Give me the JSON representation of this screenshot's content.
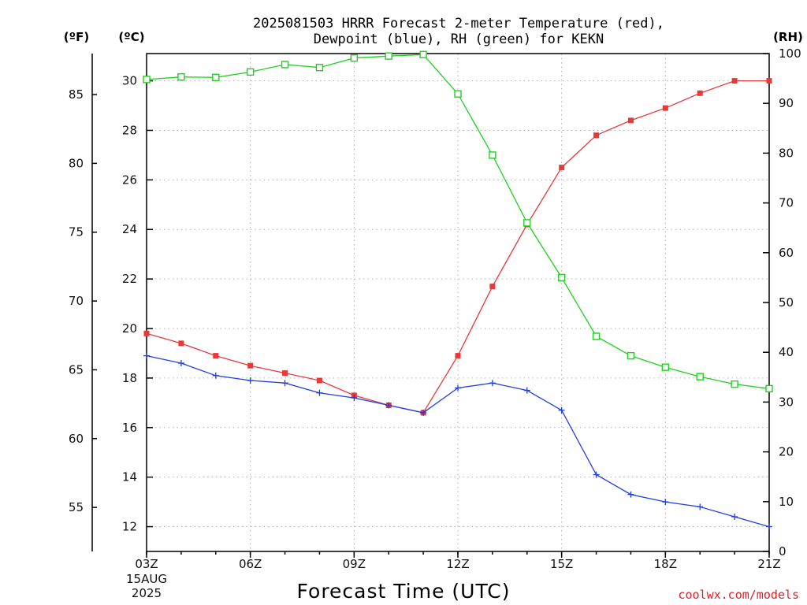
{
  "chart_data": {
    "type": "line",
    "title": [
      "2025081503 HRRR Forecast 2-meter Temperature (red),",
      "Dewpoint (blue), RH (green) for KEKN"
    ],
    "xlabel": "Forecast Time (UTC)",
    "date_label": [
      "15AUG",
      "2025"
    ],
    "left_unit_f": "(ºF)",
    "left_unit_c": "(ºC)",
    "right_unit": "(RH)",
    "credit": "coolwx.com/models",
    "x_hours": [
      3,
      4,
      5,
      6,
      7,
      8,
      9,
      10,
      11,
      12,
      13,
      14,
      15,
      16,
      17,
      18,
      19,
      20,
      21
    ],
    "x_ticks": [
      {
        "hour": 3,
        "label": "03Z"
      },
      {
        "hour": 6,
        "label": "06Z"
      },
      {
        "hour": 9,
        "label": "09Z"
      },
      {
        "hour": 12,
        "label": "12Z"
      },
      {
        "hour": 15,
        "label": "15Z"
      },
      {
        "hour": 18,
        "label": "18Z"
      },
      {
        "hour": 21,
        "label": "21Z"
      }
    ],
    "xlim": [
      3,
      21
    ],
    "ylim_c": [
      11.0,
      31.1
    ],
    "ylim_rh": [
      0,
      100
    ],
    "yticks_c": [
      12,
      14,
      16,
      18,
      20,
      22,
      24,
      26,
      28,
      30
    ],
    "yticks_f": [
      55,
      60,
      65,
      70,
      75,
      80,
      85
    ],
    "yticks_rh": [
      0,
      10,
      20,
      30,
      40,
      50,
      60,
      70,
      80,
      90,
      100
    ],
    "grid": true,
    "series": [
      {
        "name": "Temperature",
        "axis": "c",
        "color": "#e8393a",
        "marker": "filled-square",
        "values": [
          19.8,
          19.4,
          18.9,
          18.5,
          18.2,
          17.9,
          17.3,
          16.9,
          16.6,
          18.9,
          21.7,
          24.2,
          26.5,
          27.8,
          28.4,
          28.9,
          29.5,
          30.0,
          30.0
        ]
      },
      {
        "name": "Dewpoint",
        "axis": "c",
        "color": "#1f3fe0",
        "marker": "plus",
        "values": [
          18.9,
          18.6,
          18.1,
          17.9,
          17.8,
          17.4,
          17.2,
          16.9,
          16.6,
          17.6,
          17.8,
          17.5,
          16.7,
          14.1,
          13.3,
          13.0,
          12.8,
          12.4,
          12.0
        ]
      },
      {
        "name": "RH",
        "axis": "rh",
        "color": "#20d020",
        "marker": "open-square",
        "values": [
          94.8,
          95.3,
          95.2,
          96.3,
          97.8,
          97.2,
          99.1,
          99.5,
          99.8,
          91.9,
          79.6,
          66.0,
          55.0,
          43.2,
          39.3,
          37.0,
          35.1,
          33.6,
          32.7
        ]
      }
    ]
  }
}
